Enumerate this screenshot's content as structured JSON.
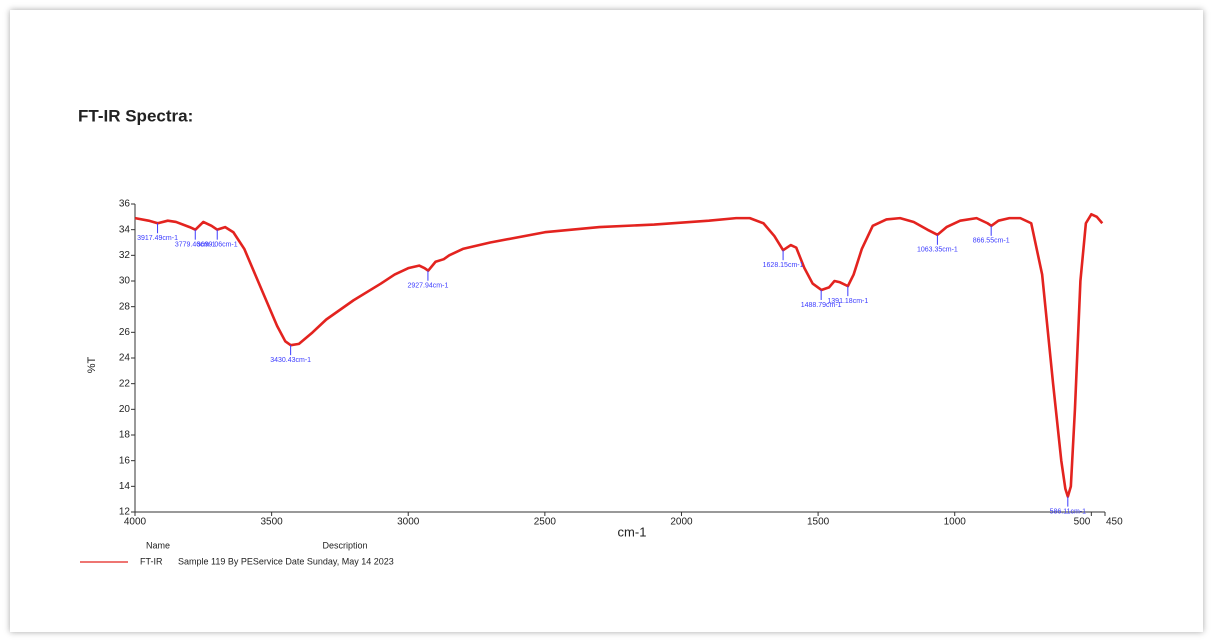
{
  "chart_data": {
    "type": "line",
    "title": "FT-IR Spectra:",
    "x_label": "cm-1",
    "y_label": "%T",
    "xlim": [
      4000,
      450
    ],
    "ylim": [
      12,
      36
    ],
    "xticks": [
      4000,
      3500,
      3000,
      2500,
      2000,
      1500,
      1000,
      500,
      450
    ],
    "yticks": [
      12,
      14,
      16,
      18,
      20,
      22,
      24,
      26,
      28,
      30,
      32,
      34,
      36
    ],
    "grid": false,
    "legend_headers": [
      "Name",
      "Description"
    ],
    "x": [
      4000,
      3950,
      3917,
      3880,
      3850,
      3800,
      3779,
      3750,
      3720,
      3699,
      3670,
      3640,
      3600,
      3560,
      3520,
      3480,
      3450,
      3430,
      3400,
      3350,
      3300,
      3200,
      3100,
      3050,
      3000,
      2960,
      2940,
      2927,
      2900,
      2870,
      2850,
      2800,
      2700,
      2500,
      2300,
      2100,
      1900,
      1800,
      1750,
      1700,
      1660,
      1628,
      1600,
      1580,
      1550,
      1520,
      1488,
      1460,
      1440,
      1420,
      1391,
      1370,
      1340,
      1300,
      1250,
      1200,
      1150,
      1100,
      1063,
      1030,
      980,
      920,
      880,
      866,
      840,
      800,
      760,
      720,
      680,
      640,
      610,
      595,
      586,
      575,
      560,
      540,
      520,
      500,
      480,
      460
    ],
    "series": [
      {
        "name": "FT-IR",
        "description": "Sample 119 By PEService Date Sunday, May 14 2023",
        "color": "#e3231f",
        "values": [
          34.9,
          34.7,
          34.5,
          34.7,
          34.6,
          34.2,
          34.0,
          34.6,
          34.3,
          34.0,
          34.2,
          33.8,
          32.5,
          30.5,
          28.5,
          26.5,
          25.3,
          25.0,
          25.1,
          26.0,
          27.0,
          28.5,
          29.8,
          30.5,
          31.0,
          31.2,
          31.0,
          30.8,
          31.5,
          31.7,
          32.0,
          32.5,
          33.0,
          33.8,
          34.2,
          34.4,
          34.7,
          34.9,
          34.9,
          34.5,
          33.5,
          32.4,
          32.8,
          32.6,
          31.0,
          29.8,
          29.3,
          29.5,
          30.0,
          29.9,
          29.6,
          30.5,
          32.5,
          34.3,
          34.8,
          34.9,
          34.6,
          34.0,
          33.6,
          34.2,
          34.7,
          34.9,
          34.5,
          34.3,
          34.7,
          34.9,
          34.9,
          34.5,
          30.5,
          22.0,
          16.0,
          13.8,
          13.2,
          14.0,
          20.0,
          30.0,
          34.5,
          35.2,
          35.0,
          34.5
        ]
      }
    ],
    "annotations": [
      {
        "x": 3917.49,
        "y": 34.5,
        "label": "3917.49cm-1"
      },
      {
        "x": 3779.46,
        "y": 34.0,
        "label": "3779.46cm-1"
      },
      {
        "x": 3699.06,
        "y": 34.0,
        "label": "3699.06cm-1"
      },
      {
        "x": 3430.43,
        "y": 25.0,
        "label": "3430.43cm-1"
      },
      {
        "x": 2927.94,
        "y": 30.8,
        "label": "2927.94cm-1"
      },
      {
        "x": 1628.15,
        "y": 32.4,
        "label": "1628.15cm-1"
      },
      {
        "x": 1488.79,
        "y": 29.3,
        "label": "1488.79cm-1"
      },
      {
        "x": 1391.18,
        "y": 29.6,
        "label": "1391.18cm-1"
      },
      {
        "x": 1063.35,
        "y": 33.6,
        "label": "1063.35cm-1"
      },
      {
        "x": 866.55,
        "y": 34.3,
        "label": "866.55cm-1"
      },
      {
        "x": 586.11,
        "y": 13.2,
        "label": "586.11cm-1"
      }
    ]
  }
}
